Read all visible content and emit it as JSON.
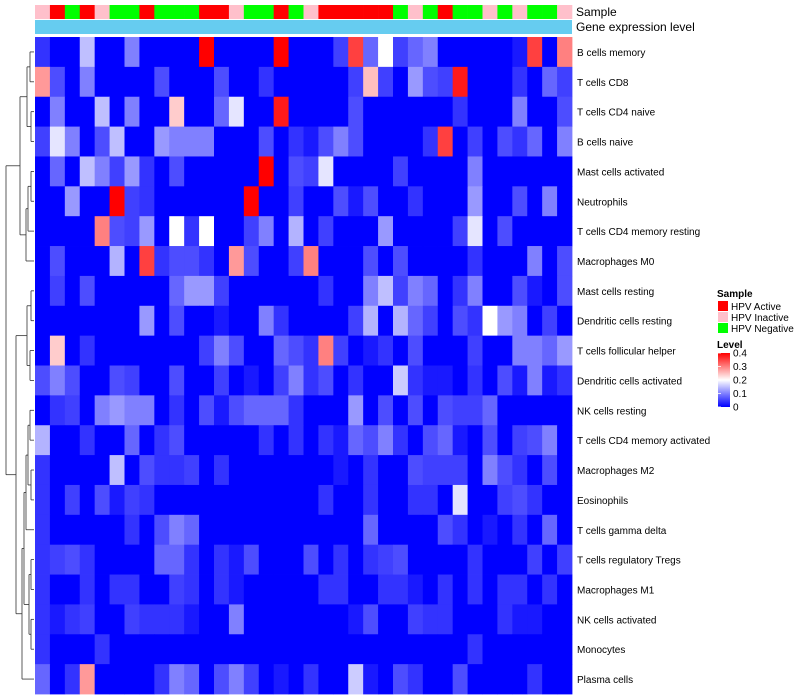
{
  "chart_data": {
    "type": "heatmap",
    "title": "",
    "annotation_tracks": [
      {
        "name": "Sample",
        "label": "Sample"
      },
      {
        "name": "Gene expression level",
        "label": "Gene expression level"
      }
    ],
    "sample_groups": [
      "HPV Active",
      "HPV Inactive",
      "HPV Negative"
    ],
    "sample_colors": {
      "HPV Active": "#ff0000",
      "HPV Inactive": "#ffc0cb",
      "HPV Negative": "#00ff00"
    },
    "expression_bar_color": "#66ccf0",
    "sample_annotation": [
      "HPV Inactive",
      "HPV Active",
      "HPV Negative",
      "HPV Active",
      "HPV Inactive",
      "HPV Negative",
      "HPV Negative",
      "HPV Active",
      "HPV Negative",
      "HPV Negative",
      "HPV Negative",
      "HPV Active",
      "HPV Active",
      "HPV Inactive",
      "HPV Negative",
      "HPV Negative",
      "HPV Active",
      "HPV Negative",
      "HPV Inactive",
      "HPV Active",
      "HPV Active",
      "HPV Active",
      "HPV Active",
      "HPV Active",
      "HPV Negative",
      "HPV Inactive",
      "HPV Negative",
      "HPV Active",
      "HPV Negative",
      "HPV Negative",
      "HPV Inactive",
      "HPV Negative",
      "HPV Inactive",
      "HPV Negative",
      "HPV Negative",
      "HPV Inactive"
    ],
    "rows": [
      "B cells memory",
      "T cells CD8",
      "T cells CD4 naive",
      "B cells naive",
      "Mast cells activated",
      "Neutrophils",
      "T cells CD4 memory resting",
      "Macrophages M0",
      "Mast cells resting",
      "Dendritic cells resting",
      "T cells follicular helper",
      "Dendritic cells activated",
      "NK cells resting",
      "T cells CD4 memory activated",
      "Macrophages M2",
      "Eosinophils",
      "T cells gamma delta",
      "T cells regulatory  Tregs",
      "Macrophages M1",
      "NK cells activated",
      "Monocytes",
      "Plasma cells"
    ],
    "values": [
      [
        0.04,
        0,
        0,
        0.15,
        0,
        0,
        0.1,
        0,
        0,
        0,
        0,
        0.4,
        0,
        0,
        0,
        0,
        0.4,
        0,
        0,
        0,
        0.05,
        0.35,
        0.08,
        0.2,
        0.05,
        0.08,
        0.1,
        0,
        0,
        0,
        0,
        0,
        0.02,
        0.35,
        0,
        0.3
      ],
      [
        0.28,
        0.06,
        0,
        0.1,
        0,
        0,
        0,
        0,
        0.06,
        0,
        0,
        0,
        0.06,
        0,
        0,
        0.04,
        0,
        0,
        0,
        0,
        0,
        0.05,
        0.25,
        0.05,
        0,
        0.12,
        0.06,
        0.05,
        0.38,
        0,
        0,
        0,
        0.04,
        0,
        0.08,
        0.05
      ],
      [
        0,
        0.1,
        0,
        0,
        0.15,
        0,
        0.1,
        0,
        0,
        0.24,
        0,
        0,
        0.08,
        0.18,
        0,
        0,
        0.38,
        0,
        0,
        0,
        0,
        0.06,
        0,
        0,
        0,
        0,
        0,
        0,
        0.04,
        0,
        0,
        0,
        0.1,
        0,
        0,
        0.06
      ],
      [
        0.05,
        0.18,
        0.1,
        0,
        0.06,
        0.15,
        0,
        0,
        0.12,
        0.1,
        0.1,
        0.1,
        0,
        0,
        0,
        0.06,
        0,
        0.04,
        0.02,
        0.06,
        0.1,
        0.06,
        0,
        0,
        0,
        0,
        0.04,
        0.35,
        0,
        0.05,
        0,
        0.06,
        0.04,
        0.08,
        0,
        0.1
      ],
      [
        0,
        0.08,
        0,
        0.15,
        0.1,
        0.05,
        0.12,
        0.04,
        0,
        0.06,
        0,
        0,
        0,
        0,
        0,
        0.4,
        0,
        0.06,
        0.05,
        0.18,
        0,
        0,
        0,
        0,
        0.05,
        0,
        0,
        0,
        0,
        0.1,
        0,
        0,
        0,
        0,
        0,
        0
      ],
      [
        0,
        0,
        0.12,
        0,
        0,
        0.42,
        0.05,
        0.04,
        0,
        0,
        0,
        0,
        0,
        0,
        0.42,
        0,
        0,
        0.05,
        0,
        0,
        0.06,
        0.02,
        0.06,
        0,
        0,
        0.04,
        0,
        0,
        0,
        0.12,
        0,
        0,
        0.06,
        0,
        0.1,
        0
      ],
      [
        0,
        0,
        0,
        0,
        0.3,
        0.06,
        0.05,
        0.12,
        0,
        0.2,
        0.04,
        0.2,
        0,
        0,
        0.05,
        0.1,
        0,
        0.14,
        0,
        0.05,
        0,
        0,
        0,
        0.12,
        0,
        0,
        0,
        0,
        0.05,
        0.18,
        0,
        0.06,
        0,
        0,
        0,
        0
      ],
      [
        0,
        0.06,
        0,
        0,
        0,
        0.14,
        0,
        0.35,
        0.04,
        0.06,
        0.06,
        0.04,
        0,
        0.28,
        0.06,
        0,
        0,
        0.05,
        0.3,
        0,
        0,
        0,
        0.06,
        0,
        0.06,
        0,
        0,
        0,
        0,
        0.04,
        0,
        0,
        0,
        0.1,
        0,
        0.06
      ],
      [
        0,
        0.05,
        0,
        0.06,
        0,
        0,
        0,
        0,
        0,
        0.08,
        0.12,
        0.12,
        0.05,
        0,
        0,
        0,
        0,
        0,
        0,
        0.04,
        0,
        0,
        0.1,
        0.15,
        0.05,
        0.1,
        0.08,
        0,
        0.04,
        0.1,
        0,
        0,
        0.06,
        0.02,
        0,
        0.06
      ],
      [
        0,
        0,
        0,
        0,
        0,
        0,
        0,
        0.12,
        0,
        0.06,
        0,
        0,
        0.02,
        0,
        0,
        0.1,
        0.04,
        0,
        0,
        0,
        0,
        0.05,
        0.14,
        0,
        0.14,
        0.08,
        0.05,
        0,
        0.06,
        0.04,
        0.2,
        0.12,
        0.1,
        0,
        0.05,
        0
      ],
      [
        0,
        0.24,
        0,
        0.04,
        0,
        0,
        0,
        0,
        0,
        0,
        0,
        0.05,
        0.1,
        0.06,
        0,
        0,
        0.08,
        0.06,
        0.04,
        0.3,
        0.05,
        0,
        0.02,
        0.04,
        0,
        0.06,
        0,
        0,
        0,
        0.05,
        0,
        0,
        0.1,
        0.1,
        0.08,
        0.12
      ],
      [
        0.06,
        0.1,
        0.06,
        0,
        0,
        0.06,
        0.05,
        0,
        0,
        0.06,
        0,
        0,
        0.05,
        0,
        0.02,
        0,
        0.05,
        0.1,
        0.04,
        0.06,
        0,
        0.04,
        0,
        0,
        0.16,
        0.04,
        0.02,
        0.02,
        0,
        0.04,
        0,
        0.06,
        0.02,
        0.1,
        0.02,
        0.04
      ],
      [
        0,
        0.04,
        0.05,
        0,
        0.1,
        0.12,
        0.1,
        0.1,
        0,
        0.04,
        0,
        0.06,
        0.02,
        0.06,
        0.08,
        0.08,
        0.08,
        0.04,
        0,
        0,
        0,
        0.12,
        0,
        0.06,
        0,
        0.06,
        0,
        0.06,
        0.05,
        0.05,
        0.08,
        0,
        0,
        0,
        0,
        0
      ],
      [
        0.14,
        0,
        0,
        0.04,
        0,
        0,
        0.08,
        0,
        0.04,
        0.06,
        0,
        0,
        0,
        0,
        0,
        0.04,
        0,
        0.04,
        0,
        0.04,
        0.02,
        0.08,
        0.06,
        0.1,
        0.04,
        0,
        0.06,
        0.08,
        0.02,
        0,
        0.06,
        0,
        0.05,
        0.06,
        0.1,
        0
      ],
      [
        0.04,
        0,
        0,
        0,
        0,
        0.15,
        0,
        0.06,
        0.04,
        0.04,
        0.05,
        0,
        0.04,
        0,
        0,
        0,
        0,
        0,
        0,
        0,
        0.02,
        0,
        0.04,
        0,
        0,
        0.06,
        0.05,
        0.05,
        0.05,
        0,
        0.1,
        0.06,
        0.04,
        0,
        0.06,
        0
      ],
      [
        0.04,
        0,
        0.05,
        0,
        0.06,
        0.02,
        0.05,
        0.04,
        0,
        0,
        0,
        0,
        0,
        0,
        0,
        0,
        0,
        0,
        0,
        0.04,
        0,
        0,
        0.04,
        0,
        0,
        0.04,
        0.04,
        0,
        0.18,
        0,
        0,
        0.05,
        0.06,
        0.04,
        0,
        0
      ],
      [
        0.04,
        0,
        0,
        0,
        0,
        0,
        0.04,
        0,
        0.06,
        0.1,
        0.08,
        0,
        0,
        0,
        0,
        0,
        0,
        0,
        0,
        0,
        0,
        0,
        0.08,
        0,
        0,
        0,
        0,
        0.06,
        0.04,
        0,
        0.02,
        0,
        0.04,
        0,
        0.08,
        0
      ],
      [
        0.04,
        0.05,
        0.06,
        0.04,
        0,
        0,
        0,
        0,
        0.08,
        0.08,
        0.04,
        0,
        0.04,
        0.02,
        0.06,
        0,
        0,
        0,
        0.06,
        0,
        0.04,
        0,
        0.04,
        0.05,
        0.06,
        0,
        0,
        0,
        0,
        0.04,
        0,
        0,
        0,
        0.05,
        0,
        0.05
      ],
      [
        0.04,
        0,
        0,
        0.04,
        0,
        0.04,
        0.04,
        0,
        0,
        0.05,
        0.04,
        0,
        0.04,
        0.02,
        0,
        0,
        0,
        0,
        0,
        0.04,
        0.04,
        0,
        0,
        0.04,
        0.04,
        0.02,
        0,
        0.04,
        0,
        0.04,
        0,
        0.04,
        0.04,
        0,
        0.04,
        0
      ],
      [
        0.04,
        0.02,
        0.04,
        0.05,
        0,
        0,
        0.05,
        0.04,
        0.04,
        0.04,
        0.02,
        0,
        0,
        0.1,
        0,
        0,
        0,
        0,
        0,
        0,
        0,
        0.02,
        0.06,
        0,
        0,
        0.05,
        0.04,
        0.04,
        0,
        0,
        0,
        0.04,
        0.02,
        0.02,
        0,
        0
      ],
      [
        0.04,
        0,
        0,
        0,
        0.04,
        0,
        0,
        0,
        0,
        0,
        0,
        0,
        0,
        0,
        0,
        0,
        0,
        0,
        0,
        0,
        0,
        0,
        0,
        0,
        0,
        0,
        0,
        0,
        0,
        0.04,
        0,
        0,
        0,
        0,
        0,
        0
      ],
      [
        0.08,
        0,
        0.04,
        0.28,
        0,
        0,
        0,
        0,
        0.04,
        0.1,
        0.08,
        0,
        0.06,
        0.1,
        0.05,
        0,
        0.02,
        0,
        0.04,
        0,
        0,
        0.16,
        0.02,
        0,
        0.06,
        0.04,
        0,
        0,
        0.06,
        0,
        0,
        0,
        0,
        0.04,
        0,
        0
      ]
    ],
    "color_scale": {
      "min": 0,
      "max": 0.4,
      "low": "#0000ff",
      "mid": "#ffffff",
      "high": "#ff0000",
      "mid_value": 0.2
    },
    "legend": {
      "sample_title": "Sample",
      "sample_labels": [
        "HPV Active",
        "HPV Inactive",
        "HPV Negative"
      ],
      "level_title": "Level",
      "level_ticks": [
        "0.4",
        "0.3",
        "0.2",
        "0.1",
        "0"
      ],
      "level_tick_values": [
        0.4,
        0.3,
        0.2,
        0.1,
        0
      ],
      "position": "right"
    },
    "dendrogram": "rows"
  }
}
